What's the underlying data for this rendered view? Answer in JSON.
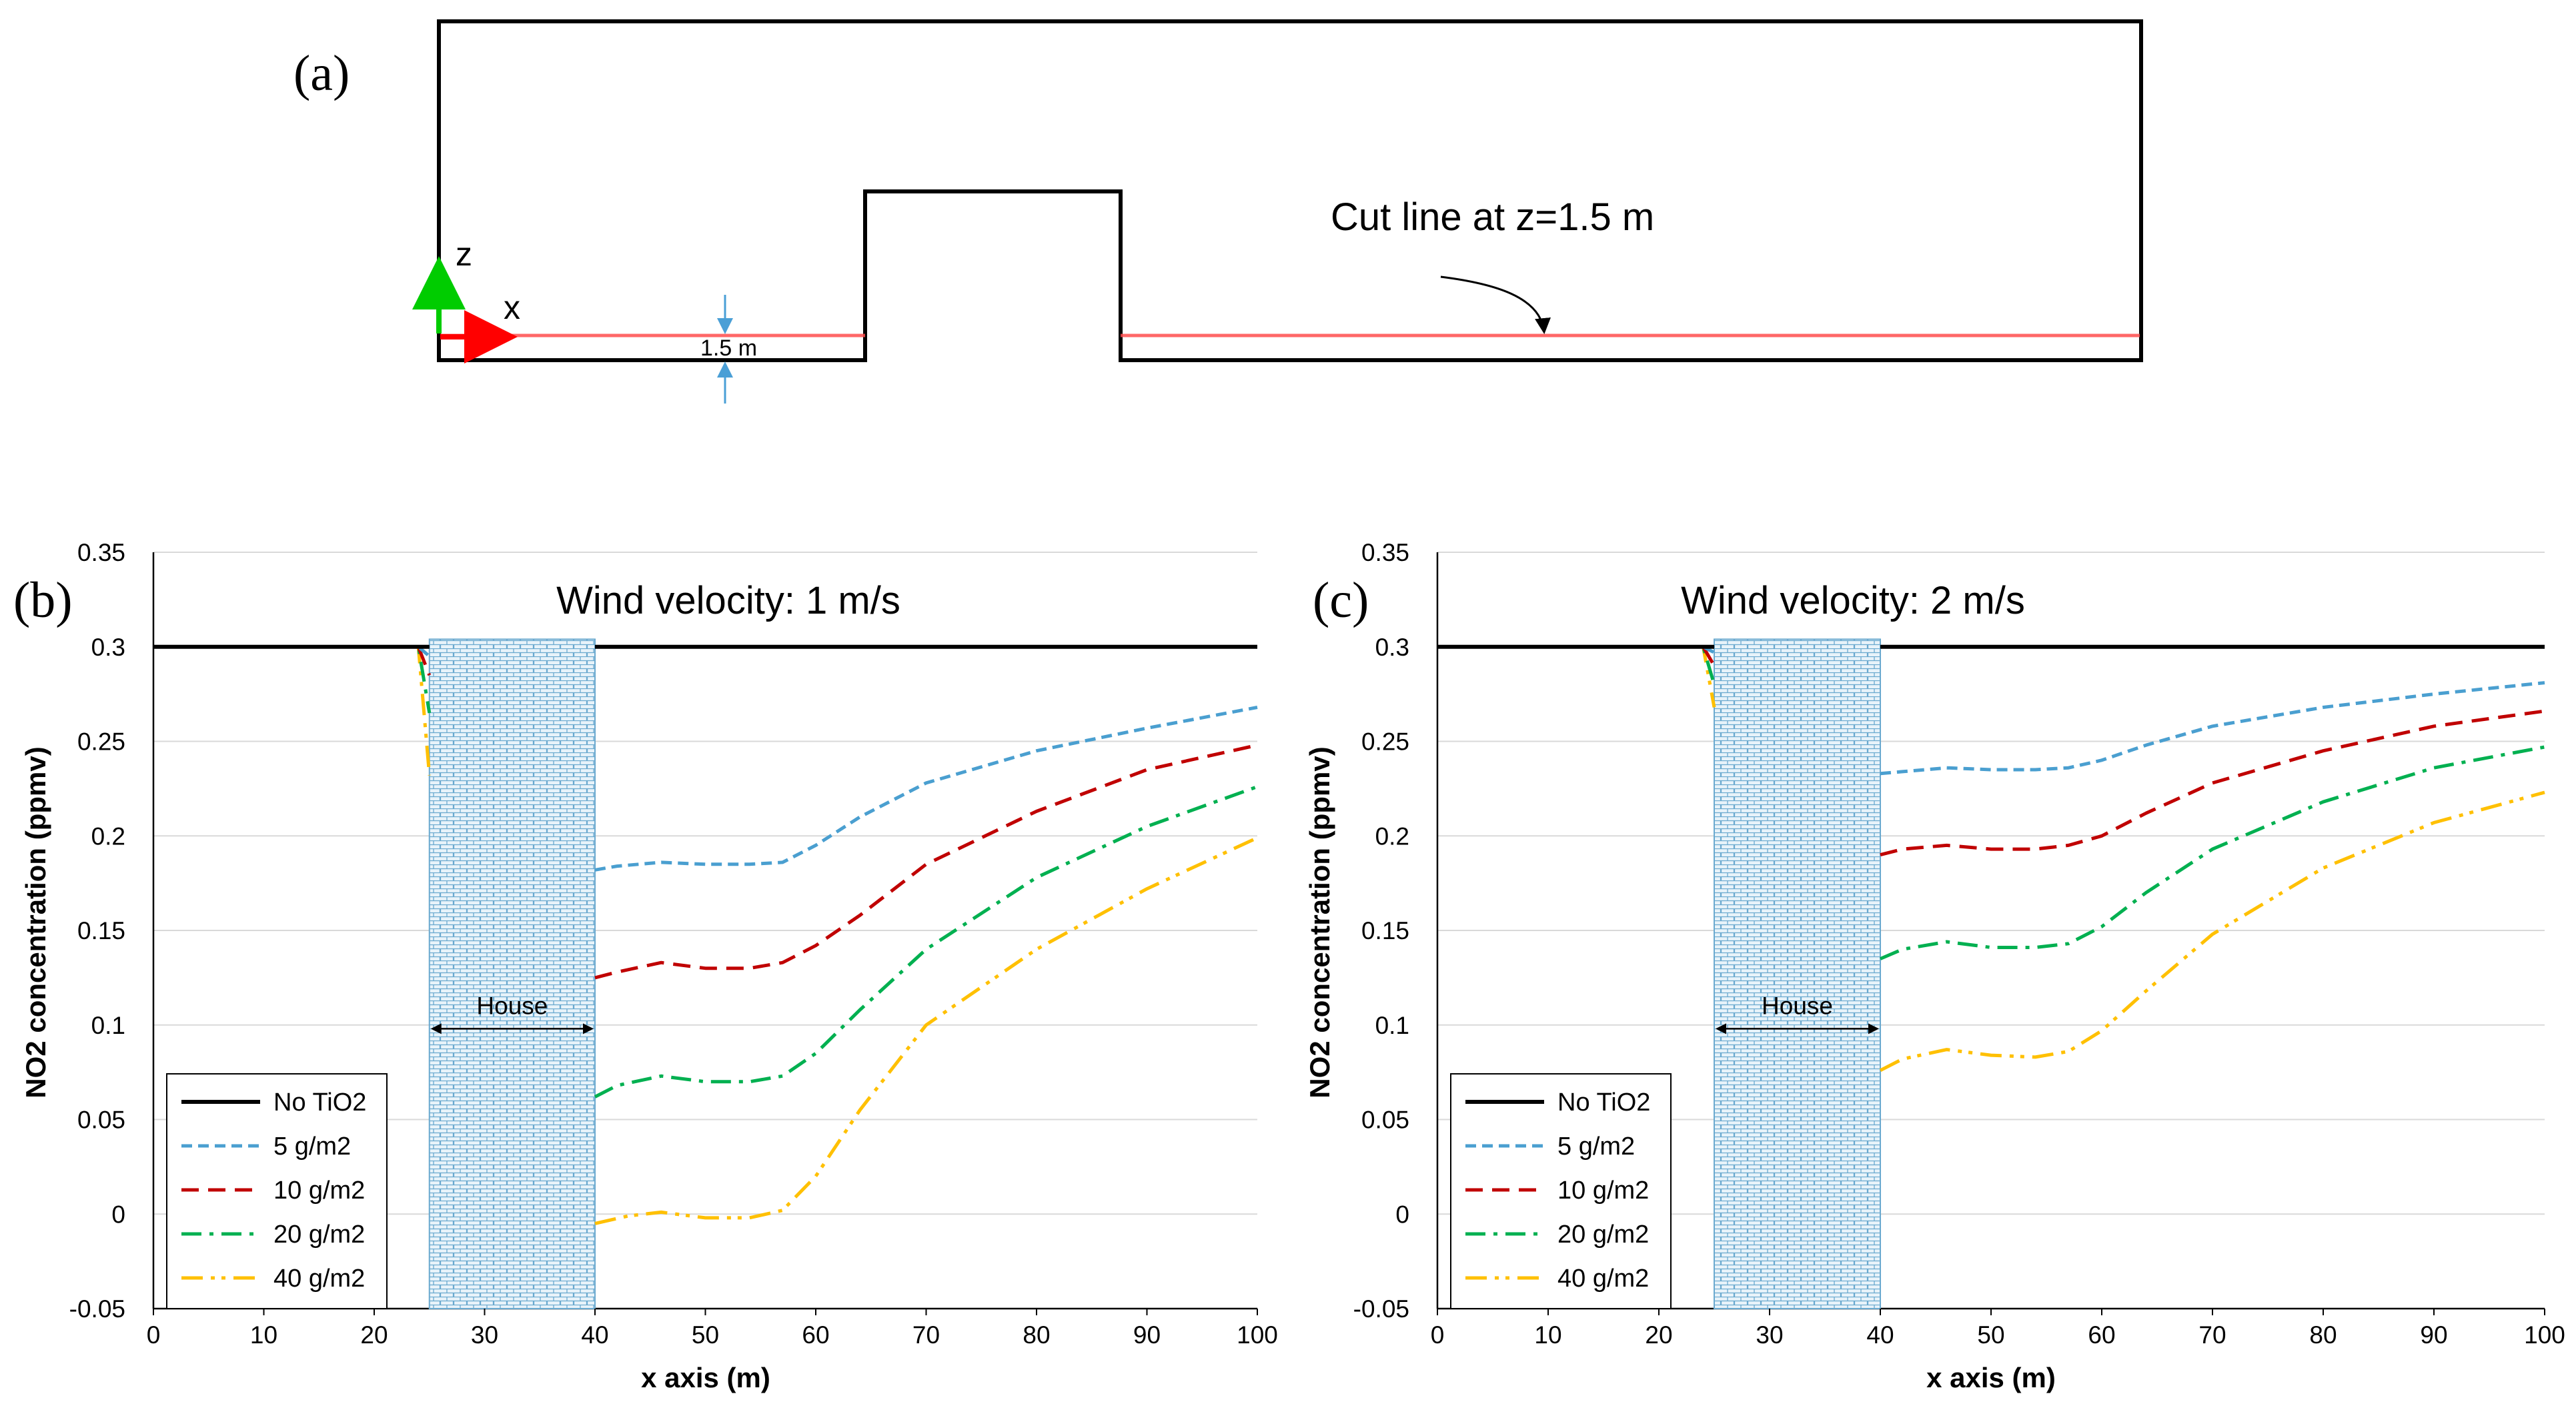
{
  "panels": {
    "a": "(a)",
    "b": "(b)",
    "c": "(c)"
  },
  "diagram": {
    "cut_line_label": "Cut line at z=1.5 m",
    "dimension_label": "1.5 m",
    "axis_x": "x",
    "axis_z": "z",
    "colors": {
      "outline": "#000000",
      "cut_line": "#ff4d4d",
      "x_arrow": "#ff0000",
      "z_arrow": "#00cc00",
      "dimension": "#4a9fd6"
    }
  },
  "legend": {
    "entries": [
      "No TiO2",
      "5 g/m2",
      "10 g/m2",
      "20 g/m2",
      "40 g/m2"
    ],
    "colors": [
      "#000000",
      "#4a9fd0",
      "#c00000",
      "#00b050",
      "#ffc000"
    ]
  },
  "chart_data": [
    {
      "type": "line",
      "title": "Wind velocity: 1 m/s",
      "xlabel": "x axis (m)",
      "ylabel": "NO2 concentration (ppmv)",
      "xlim": [
        0,
        100
      ],
      "ylim": [
        -0.05,
        0.35
      ],
      "xticks": [
        "0",
        "10",
        "20",
        "30",
        "40",
        "50",
        "60",
        "70",
        "80",
        "90",
        "100"
      ],
      "yticks": [
        "-0.05",
        "0",
        "0.05",
        "0.1",
        "0.15",
        "0.2",
        "0.25",
        "0.3",
        "0.35"
      ],
      "house": {
        "label": "House",
        "x_start": 25,
        "x_end": 40
      },
      "series": [
        {
          "name": "No TiO2",
          "upstream": [
            [
              0,
              0.3
            ],
            [
              25,
              0.3
            ]
          ],
          "downstream": [
            [
              40,
              0.3
            ],
            [
              100,
              0.3
            ]
          ]
        },
        {
          "name": "5 g/m2",
          "upstream": [
            [
              0,
              0.3
            ],
            [
              24,
              0.3
            ],
            [
              25,
              0.295
            ]
          ],
          "downstream": [
            [
              40,
              0.182
            ],
            [
              42,
              0.184
            ],
            [
              46,
              0.186
            ],
            [
              50,
              0.185
            ],
            [
              54,
              0.185
            ],
            [
              57,
              0.186
            ],
            [
              60,
              0.195
            ],
            [
              64,
              0.21
            ],
            [
              70,
              0.228
            ],
            [
              80,
              0.245
            ],
            [
              90,
              0.257
            ],
            [
              100,
              0.268
            ]
          ]
        },
        {
          "name": "10 g/m2",
          "upstream": [
            [
              0,
              0.3
            ],
            [
              24,
              0.3
            ],
            [
              25,
              0.285
            ]
          ],
          "downstream": [
            [
              40,
              0.125
            ],
            [
              42,
              0.128
            ],
            [
              46,
              0.133
            ],
            [
              50,
              0.13
            ],
            [
              54,
              0.13
            ],
            [
              57,
              0.133
            ],
            [
              60,
              0.142
            ],
            [
              64,
              0.158
            ],
            [
              70,
              0.185
            ],
            [
              80,
              0.213
            ],
            [
              90,
              0.235
            ],
            [
              100,
              0.248
            ]
          ]
        },
        {
          "name": "20 g/m2",
          "upstream": [
            [
              0,
              0.3
            ],
            [
              24,
              0.3
            ],
            [
              25,
              0.265
            ]
          ],
          "downstream": [
            [
              40,
              0.062
            ],
            [
              42,
              0.068
            ],
            [
              46,
              0.073
            ],
            [
              50,
              0.07
            ],
            [
              54,
              0.07
            ],
            [
              57,
              0.073
            ],
            [
              60,
              0.085
            ],
            [
              64,
              0.108
            ],
            [
              70,
              0.14
            ],
            [
              80,
              0.178
            ],
            [
              90,
              0.205
            ],
            [
              100,
              0.226
            ]
          ]
        },
        {
          "name": "40 g/m2",
          "upstream": [
            [
              0,
              0.3
            ],
            [
              24,
              0.3
            ],
            [
              25,
              0.232
            ]
          ],
          "downstream": [
            [
              40,
              -0.005
            ],
            [
              43,
              -0.001
            ],
            [
              46,
              0.001
            ],
            [
              50,
              -0.002
            ],
            [
              54,
              -0.002
            ],
            [
              57,
              0.002
            ],
            [
              60,
              0.02
            ],
            [
              64,
              0.055
            ],
            [
              70,
              0.1
            ],
            [
              80,
              0.14
            ],
            [
              90,
              0.172
            ],
            [
              100,
              0.199
            ]
          ]
        }
      ]
    },
    {
      "type": "line",
      "title": "Wind velocity: 2 m/s",
      "xlabel": "x axis (m)",
      "ylabel": "NO2 concentration (ppmv)",
      "xlim": [
        0,
        100
      ],
      "ylim": [
        -0.05,
        0.35
      ],
      "xticks": [
        "0",
        "10",
        "20",
        "30",
        "40",
        "50",
        "60",
        "70",
        "80",
        "90",
        "100"
      ],
      "yticks": [
        "-0.05",
        "0",
        "0.05",
        "0.1",
        "0.15",
        "0.2",
        "0.25",
        "0.3",
        "0.35"
      ],
      "house": {
        "label": "House",
        "x_start": 25,
        "x_end": 40
      },
      "series": [
        {
          "name": "No TiO2",
          "upstream": [
            [
              0,
              0.3
            ],
            [
              25,
              0.3
            ]
          ],
          "downstream": [
            [
              40,
              0.3
            ],
            [
              100,
              0.3
            ]
          ]
        },
        {
          "name": "5 g/m2",
          "upstream": [
            [
              0,
              0.3
            ],
            [
              24,
              0.3
            ],
            [
              25,
              0.297
            ]
          ],
          "downstream": [
            [
              40,
              0.233
            ],
            [
              42,
              0.234
            ],
            [
              46,
              0.236
            ],
            [
              50,
              0.235
            ],
            [
              54,
              0.235
            ],
            [
              57,
              0.236
            ],
            [
              60,
              0.24
            ],
            [
              64,
              0.248
            ],
            [
              70,
              0.258
            ],
            [
              80,
              0.268
            ],
            [
              90,
              0.275
            ],
            [
              100,
              0.281
            ]
          ]
        },
        {
          "name": "10 g/m2",
          "upstream": [
            [
              0,
              0.3
            ],
            [
              24,
              0.3
            ],
            [
              25,
              0.29
            ]
          ],
          "downstream": [
            [
              40,
              0.19
            ],
            [
              42,
              0.193
            ],
            [
              46,
              0.195
            ],
            [
              50,
              0.193
            ],
            [
              54,
              0.193
            ],
            [
              57,
              0.195
            ],
            [
              60,
              0.2
            ],
            [
              64,
              0.212
            ],
            [
              70,
              0.228
            ],
            [
              80,
              0.245
            ],
            [
              90,
              0.258
            ],
            [
              100,
              0.266
            ]
          ]
        },
        {
          "name": "20 g/m2",
          "upstream": [
            [
              0,
              0.3
            ],
            [
              24,
              0.3
            ],
            [
              25,
              0.28
            ]
          ],
          "downstream": [
            [
              40,
              0.135
            ],
            [
              42,
              0.14
            ],
            [
              46,
              0.144
            ],
            [
              50,
              0.141
            ],
            [
              54,
              0.141
            ],
            [
              57,
              0.143
            ],
            [
              60,
              0.152
            ],
            [
              64,
              0.17
            ],
            [
              70,
              0.193
            ],
            [
              80,
              0.218
            ],
            [
              90,
              0.236
            ],
            [
              100,
              0.247
            ]
          ]
        },
        {
          "name": "40 g/m2",
          "upstream": [
            [
              0,
              0.3
            ],
            [
              24,
              0.3
            ],
            [
              25,
              0.268
            ]
          ],
          "downstream": [
            [
              40,
              0.076
            ],
            [
              42,
              0.082
            ],
            [
              46,
              0.087
            ],
            [
              50,
              0.084
            ],
            [
              54,
              0.083
            ],
            [
              57,
              0.086
            ],
            [
              60,
              0.097
            ],
            [
              64,
              0.118
            ],
            [
              70,
              0.148
            ],
            [
              80,
              0.183
            ],
            [
              90,
              0.207
            ],
            [
              100,
              0.223
            ]
          ]
        }
      ]
    }
  ]
}
